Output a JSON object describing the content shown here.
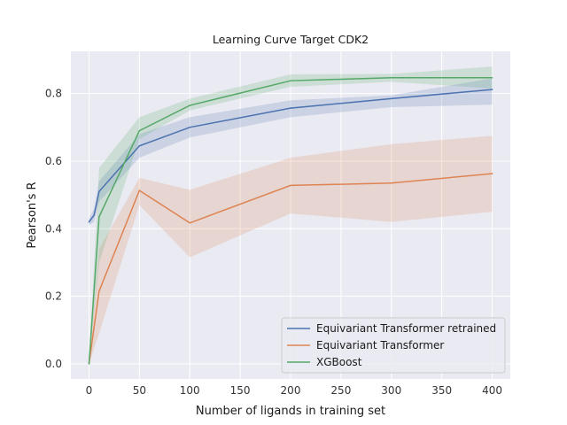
{
  "chart_data": {
    "type": "line",
    "title": "Learning Curve Target CDK2",
    "xlabel": "Number of ligands in training set",
    "ylabel": "Pearson's R",
    "xlim": [
      -18,
      418
    ],
    "ylim": [
      -0.045,
      0.925
    ],
    "x_ticks": [
      0,
      50,
      100,
      150,
      200,
      250,
      300,
      350,
      400
    ],
    "x_tick_labels": [
      "0",
      "50",
      "100",
      "150",
      "200",
      "250",
      "300",
      "350",
      "400"
    ],
    "y_ticks": [
      0.0,
      0.2,
      0.4,
      0.6,
      0.8
    ],
    "y_tick_labels": [
      "0.0",
      "0.2",
      "0.4",
      "0.6",
      "0.8"
    ],
    "grid": true,
    "legend_position": "lower-right",
    "series": [
      {
        "name": "Equivariant Transformer retrained",
        "color": "#4c72b0",
        "x": [
          0,
          5,
          10,
          50,
          100,
          200,
          300,
          400
        ],
        "y": [
          0.42,
          0.44,
          0.51,
          0.645,
          0.7,
          0.757,
          0.785,
          0.812
        ],
        "y_low": [
          0.41,
          0.42,
          0.48,
          0.61,
          0.67,
          0.73,
          0.76,
          0.767
        ],
        "y_high": [
          0.43,
          0.46,
          0.54,
          0.68,
          0.73,
          0.78,
          0.795,
          0.845
        ]
      },
      {
        "name": "Equivariant Transformer",
        "color": "#dd8452",
        "x": [
          0,
          10,
          50,
          100,
          200,
          300,
          400
        ],
        "y": [
          0.0,
          0.215,
          0.513,
          0.417,
          0.528,
          0.535,
          0.563
        ],
        "y_low": [
          0.0,
          0.09,
          0.47,
          0.315,
          0.445,
          0.42,
          0.45
        ],
        "y_high": [
          0.0,
          0.34,
          0.55,
          0.515,
          0.61,
          0.65,
          0.675
        ]
      },
      {
        "name": "XGBoost",
        "color": "#55a868",
        "x": [
          0,
          10,
          50,
          100,
          200,
          300,
          400
        ],
        "y": [
          0.0,
          0.435,
          0.69,
          0.765,
          0.838,
          0.847,
          0.847
        ],
        "y_low": [
          0.0,
          0.3,
          0.665,
          0.75,
          0.82,
          0.835,
          0.815
        ],
        "y_high": [
          0.0,
          0.58,
          0.73,
          0.785,
          0.857,
          0.858,
          0.88
        ]
      }
    ]
  }
}
